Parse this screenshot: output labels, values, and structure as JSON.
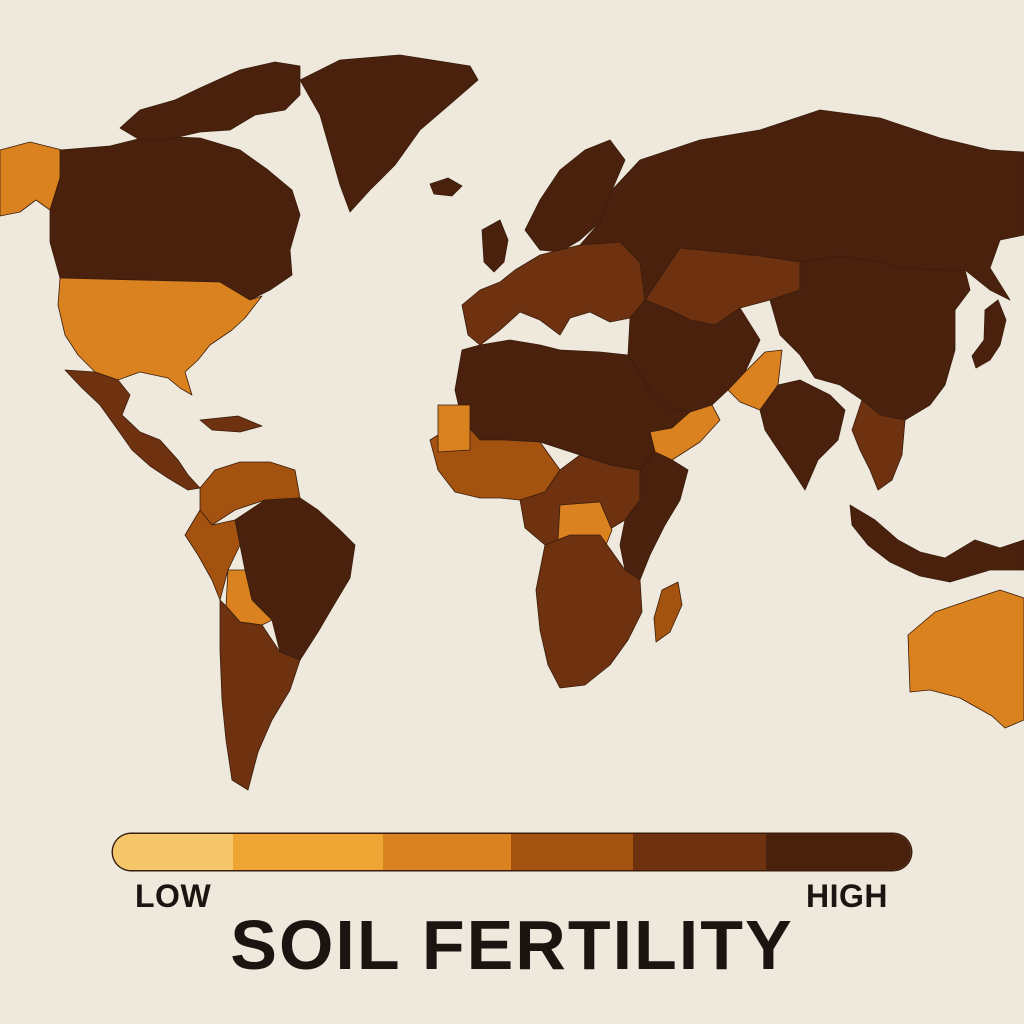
{
  "title": "SOIL FERTILITY",
  "legend": {
    "low_label": "LOW",
    "high_label": "HIGH",
    "scale_colors": [
      "#f6c66a",
      "#eea534",
      "#d9821f",
      "#a4520f",
      "#6e3210",
      "#4a210c"
    ]
  },
  "colors": {
    "background": "#efe9dd",
    "text": "#1c1410",
    "ocean": "#efe9dd"
  },
  "regions": [
    {
      "name": "alaska",
      "level": 3
    },
    {
      "name": "canada",
      "level": 6
    },
    {
      "name": "arctic-islands",
      "level": 6
    },
    {
      "name": "greenland",
      "level": 6
    },
    {
      "name": "iceland",
      "level": 6
    },
    {
      "name": "usa",
      "level": 3
    },
    {
      "name": "mexico-central-america",
      "level": 5
    },
    {
      "name": "caribbean",
      "level": 5
    },
    {
      "name": "south-america-north",
      "level": 4
    },
    {
      "name": "brazil",
      "level": 6
    },
    {
      "name": "andes",
      "level": 4
    },
    {
      "name": "bolivia",
      "level": 3
    },
    {
      "name": "southern-cone",
      "level": 5
    },
    {
      "name": "uk-ireland",
      "level": 6
    },
    {
      "name": "scandinavia",
      "level": 6
    },
    {
      "name": "europe",
      "level": 5
    },
    {
      "name": "russia",
      "level": 6
    },
    {
      "name": "central-asia",
      "level": 5
    },
    {
      "name": "china",
      "level": 6
    },
    {
      "name": "japan",
      "level": 6
    },
    {
      "name": "middle-east",
      "level": 6
    },
    {
      "name": "arabia-south",
      "level": 3
    },
    {
      "name": "pakistan",
      "level": 3
    },
    {
      "name": "india",
      "level": 6
    },
    {
      "name": "southeast-asia",
      "level": 5
    },
    {
      "name": "indonesia",
      "level": 6
    },
    {
      "name": "north-africa",
      "level": 6
    },
    {
      "name": "west-africa",
      "level": 4
    },
    {
      "name": "mauritania",
      "level": 3
    },
    {
      "name": "central-africa",
      "level": 5
    },
    {
      "name": "congo",
      "level": 3
    },
    {
      "name": "east-africa",
      "level": 6
    },
    {
      "name": "southern-africa",
      "level": 5
    },
    {
      "name": "madagascar",
      "level": 4
    },
    {
      "name": "australia",
      "level": 3
    }
  ]
}
